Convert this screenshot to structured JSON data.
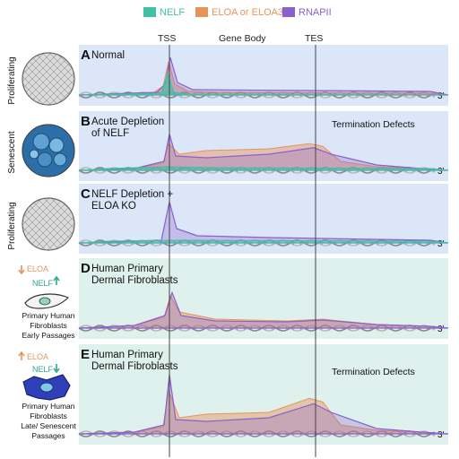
{
  "legend": [
    {
      "label": "NELF",
      "color": "#3fc1a6"
    },
    {
      "label": "ELOA or ELOA3",
      "color": "#e8935a"
    },
    {
      "label": "RNAPII",
      "color": "#8a5fd0"
    }
  ],
  "header": {
    "tss": "TSS",
    "gene_body": "Gene Body",
    "tes": "TES"
  },
  "three_prime": "3'",
  "panels": [
    {
      "letter": "A",
      "title_lines": [
        "Normal"
      ],
      "annotation": "",
      "side_label": "Proliferating",
      "cell": "proliferating-cell-cluster-icon"
    },
    {
      "letter": "B",
      "title_lines": [
        "Acute Depletion",
        "of NELF"
      ],
      "annotation": "Termination Defects",
      "side_label": "Senescent",
      "cell": "senescent-cell-cluster-icon"
    },
    {
      "letter": "C",
      "title_lines": [
        "NELF Depletion +",
        "ELOA KO"
      ],
      "annotation": "",
      "side_label": "Proliferating",
      "cell": "proliferating-cell-cluster-icon"
    },
    {
      "letter": "D",
      "title_lines": [
        "Human Primary",
        "Dermal Fibroblasts"
      ],
      "annotation": "",
      "side_label": "",
      "cell": "early-fibroblast-icon",
      "arrows": [
        {
          "text": "ELOA",
          "dir": "down"
        },
        {
          "text": "NELF",
          "dir": "up"
        }
      ],
      "caption_lines": [
        "Primary Human",
        "Fibroblasts",
        "Early Passages"
      ]
    },
    {
      "letter": "E",
      "title_lines": [
        "Human Primary",
        "Dermal Fibroblasts"
      ],
      "annotation": "Termination Defects",
      "side_label": "",
      "cell": "senescent-fibroblast-icon",
      "arrows": [
        {
          "text": "ELOA",
          "dir": "up"
        },
        {
          "text": "NELF",
          "dir": "down"
        }
      ],
      "caption_lines": [
        "Primary Human",
        "Fibroblasts",
        "Late/ Senescent",
        "Passages"
      ]
    }
  ]
}
